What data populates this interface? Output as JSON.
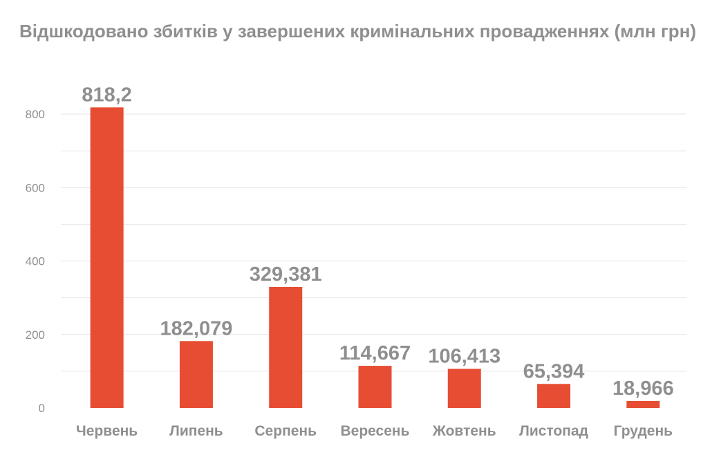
{
  "chart_data": {
    "type": "bar",
    "title": "Відшкодовано збитків у завершених кримінальних провадженнях (млн грн)",
    "xlabel": "",
    "ylabel": "",
    "categories": [
      "Червень",
      "Липень",
      "Серпень",
      "Вересень",
      "Жовтень",
      "Листопад",
      "Грудень"
    ],
    "values": [
      818.2,
      182.079,
      329.381,
      114.667,
      106.413,
      65.394,
      18.966
    ],
    "data_labels": [
      "818,2",
      "182,079",
      "329,381",
      "114,667",
      "106,413",
      "65,394",
      "18,966"
    ],
    "ylim": [
      0,
      800
    ],
    "yticks": [
      0,
      200,
      400,
      600,
      800
    ],
    "gridlines_every": 100,
    "grid": true,
    "legend": "none",
    "colors": {
      "bar": "#E64D32",
      "text": "#8F8F8F",
      "grid": "#E6E6E6"
    }
  }
}
